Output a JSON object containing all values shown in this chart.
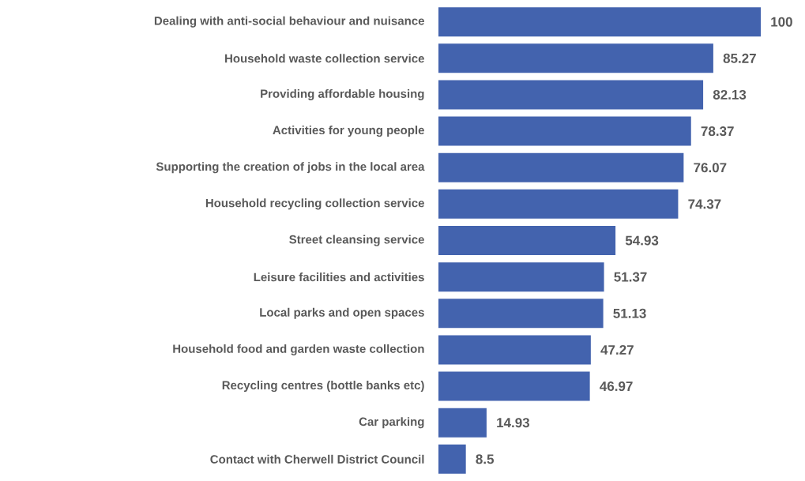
{
  "chart_data": {
    "type": "bar",
    "orientation": "horizontal",
    "categories": [
      "Dealing with anti-social behaviour and nuisance",
      "Household waste collection service",
      "Providing affordable housing",
      "Activities for young people",
      "Supporting the creation of jobs in the local area",
      "Household recycling collection service",
      "Street cleansing service",
      "Leisure facilities and activities",
      "Local parks and open spaces",
      "Household food and garden waste collection",
      "Recycling centres (bottle banks etc)",
      "Car parking",
      "Contact with Cherwell District Council"
    ],
    "values": [
      100,
      85.27,
      82.13,
      78.37,
      76.07,
      74.37,
      54.93,
      51.37,
      51.13,
      47.27,
      46.97,
      14.93,
      8.5
    ],
    "color": "#4363ae",
    "data_labels": true
  }
}
